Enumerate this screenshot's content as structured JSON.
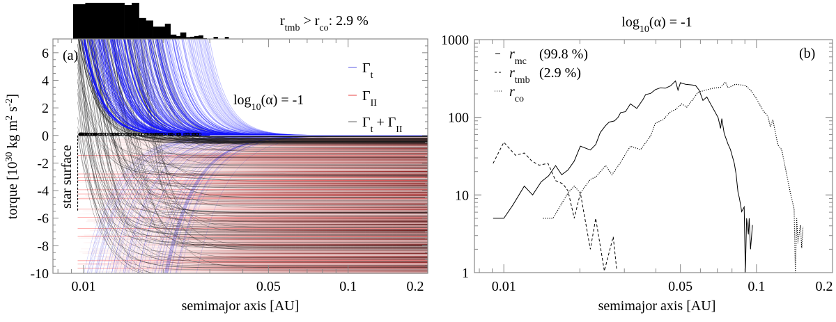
{
  "figure": {
    "panel_a": {
      "tag": "(a)",
      "top_annotation": "r_{tmb} > r_{co}: 2.9 %",
      "alpha_annotation": "log_{10}(α) = -1",
      "star_surface_label": "star surface",
      "xlabel": "semimajor axis [AU]",
      "ylabel": "torque [10^{30} kg m^{2} s^{-2}]",
      "legend": [
        "Γ_{t}",
        "Γ_{II}",
        "Γ_{t} + Γ_{II}"
      ],
      "xtick_labels": [
        "0.01",
        "0.05",
        "0.1",
        "0.2"
      ],
      "ytick_labels": [
        "6",
        "4",
        "2",
        "0",
        "-2",
        "-4",
        "-6",
        "-8",
        "-10"
      ]
    },
    "panel_b": {
      "tag": "(b)",
      "title": "log_{10}(α) = -1",
      "xlabel": "semimajor axis [AU]",
      "legend": [
        {
          "label": "r_{mc}",
          "pct": "(99.8 %)"
        },
        {
          "label": "r_{tmb}",
          "pct": "(2.9 %)"
        },
        {
          "label": "r_{co}",
          "pct": ""
        }
      ],
      "xtick_labels": [
        "0.01",
        "0.05",
        "0.1",
        "0.2"
      ],
      "ytick_labels": [
        "1000",
        "100",
        "10",
        "1"
      ]
    }
  },
  "chart_data": [
    {
      "panel": "a",
      "type": "line",
      "title": "",
      "xlabel": "semimajor axis [AU]",
      "ylabel": "torque [10^30 kg m^2 s^-2]",
      "xscale": "log",
      "xlim": [
        0.00766,
        0.2
      ],
      "ylim": [
        -10,
        7
      ],
      "xticks": [
        0.01,
        0.05,
        0.1,
        0.2
      ],
      "yticks": [
        6,
        4,
        2,
        0,
        -2,
        -4,
        -6,
        -8,
        -10
      ],
      "legend_position": "top-right",
      "series": [
        {
          "name": "Γ_t",
          "color": "#2020ff"
        },
        {
          "name": "Γ_II",
          "color": "#e03030"
        },
        {
          "name": "Γ_t + Γ_II",
          "color": "#222222"
        }
      ],
      "star_surface_x": 0.0095,
      "histogram": {
        "annotation": "r_tmb > r_co: 2.9 %",
        "bin_edges": [
          0.00913,
          0.01015,
          0.01427,
          0.0152,
          0.0162,
          0.0172,
          0.0183,
          0.0203,
          0.0213,
          0.0224,
          0.0232,
          0.0244,
          0.0253,
          0.0262,
          0.0272,
          0.0283,
          0.0292
        ],
        "relative_counts": [
          0.96,
          1.0,
          0.94,
          1.0,
          0.58,
          0.51,
          0.34,
          0.42,
          0.12,
          0.08,
          0.18,
          0.05,
          0.06,
          0.08,
          0.1,
          0.02
        ],
        "isolated_bins": [
          {
            "range": [
              0.031,
              0.0322
            ],
            "relative_count": 0.02
          },
          {
            "range": [
              0.0342,
              0.0354
            ],
            "relative_count": 0.02
          }
        ]
      }
    },
    {
      "panel": "b",
      "type": "line",
      "title": "log10(α) = -1",
      "xlabel": "semimajor axis [AU]",
      "ylabel": "",
      "xscale": "log",
      "yscale": "log",
      "xlim": [
        0.00765,
        0.2
      ],
      "ylim": [
        1,
        1000
      ],
      "xticks": [
        0.01,
        0.05,
        0.1,
        0.2
      ],
      "yticks": [
        1,
        10,
        100,
        1000
      ],
      "legend_position": "top-left",
      "series": [
        {
          "name": "r_mc",
          "pct": "99.8 %",
          "style": "solid",
          "x": [
            0.00907,
            0.01,
            0.01088,
            0.01205,
            0.013,
            0.01406,
            0.01503,
            0.01603,
            0.01695,
            0.01795,
            0.019,
            0.0201,
            0.022,
            0.0231,
            0.0241,
            0.0253,
            0.0261,
            0.0274,
            0.0283,
            0.029,
            0.0303,
            0.0317,
            0.0336,
            0.0356,
            0.0364,
            0.0381,
            0.0398,
            0.0417,
            0.0436,
            0.0457,
            0.0478,
            0.0489,
            0.05,
            0.0524,
            0.0554,
            0.0574,
            0.0593,
            0.0614,
            0.0636,
            0.0658,
            0.0681,
            0.0705,
            0.0721,
            0.0729,
            0.0745,
            0.0771,
            0.0789,
            0.0817,
            0.083,
            0.0845,
            0.0855,
            0.0865,
            0.0874,
            0.0894,
            0.0904,
            0.0914,
            0.0929,
            0.0936,
            0.0947,
            0.0964
          ],
          "y": [
            5,
            5,
            7.5,
            13,
            10,
            14.8,
            17.6,
            23.9,
            18.2,
            21,
            27.3,
            42.5,
            37.9,
            44.6,
            63.9,
            78.3,
            86.7,
            89.7,
            99.3,
            115,
            118,
            149,
            130,
            171,
            196,
            203,
            227,
            240,
            237,
            254,
            294,
            224,
            279,
            266,
            261,
            257,
            224,
            165,
            183,
            149,
            122,
            99,
            72,
            96,
            62,
            45.5,
            38.4,
            25.5,
            18.8,
            10.9,
            9.2,
            7.5,
            6.1,
            7.0,
            1,
            5,
            3.1,
            5,
            2,
            4.1
          ]
        },
        {
          "name": "r_tmb",
          "pct": "2.9 %",
          "style": "dashed",
          "x": [
            0.00907,
            0.01,
            0.01113,
            0.01205,
            0.01291,
            0.0138,
            0.01496,
            0.01603,
            0.01715,
            0.01795,
            0.019,
            0.0201,
            0.022,
            0.0231,
            0.025,
            0.0271,
            0.028
          ],
          "y": [
            25.5,
            47.7,
            32.4,
            34.7,
            27.3,
            24.2,
            25.5,
            15.3,
            13.9,
            11.3,
            5,
            10.6,
            2,
            5,
            1.05,
            2.9,
            1.08
          ]
        },
        {
          "name": "r_co",
          "pct": "",
          "style": "dotted",
          "x": [
            0.0143,
            0.01566,
            0.01677,
            0.01795,
            0.019,
            0.0201,
            0.022,
            0.0231,
            0.0253,
            0.0268,
            0.029,
            0.0303,
            0.0317,
            0.0348,
            0.0364,
            0.0381,
            0.0398,
            0.0427,
            0.0457,
            0.0478,
            0.0506,
            0.053,
            0.0561,
            0.0587,
            0.0629,
            0.0673,
            0.0721,
            0.0754,
            0.0771,
            0.0826,
            0.0904,
            0.0947,
            0.0991,
            0.1061,
            0.111,
            0.1135,
            0.1161,
            0.1216,
            0.1258,
            0.1318,
            0.1362,
            0.141,
            0.1426,
            0.1443,
            0.1459,
            0.1493,
            0.1511,
            0.1528
          ],
          "y": [
            5,
            5,
            7.3,
            10.6,
            13,
            10.6,
            15.9,
            17,
            23.9,
            18.2,
            26.4,
            33.5,
            42.5,
            38.4,
            47.1,
            57.7,
            83.8,
            92.9,
            118,
            126,
            149,
            135,
            171,
            210,
            224,
            237,
            243,
            285,
            240,
            266,
            257,
            224,
            183,
            122,
            103,
            75.7,
            92.9,
            44,
            38.4,
            18.2,
            10.6,
            6.6,
            1,
            5,
            2.4,
            4.1,
            2.07,
            3.9
          ]
        }
      ]
    }
  ]
}
